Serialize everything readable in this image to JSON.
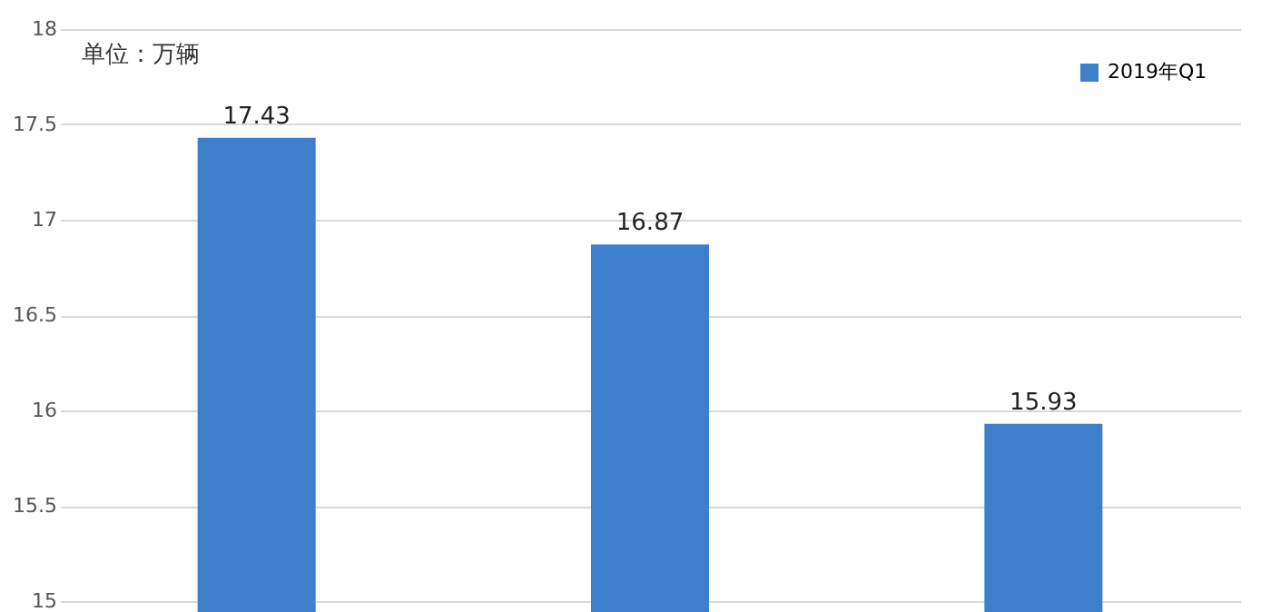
{
  "chart_data": {
    "type": "bar",
    "categories": [
      null,
      null,
      null
    ],
    "series": [
      {
        "name": "2019年Q1",
        "color": "#3d7fcb",
        "values": [
          17.43,
          16.87,
          15.93
        ]
      }
    ],
    "ylim": [
      15,
      18
    ],
    "yticks": [
      15,
      15.5,
      16,
      16.5,
      17,
      17.5,
      18
    ],
    "grid": "y",
    "legend": "top right",
    "data_labels": true,
    "tick_labels": "y",
    "annotations": [
      "单位：万辆"
    ]
  }
}
